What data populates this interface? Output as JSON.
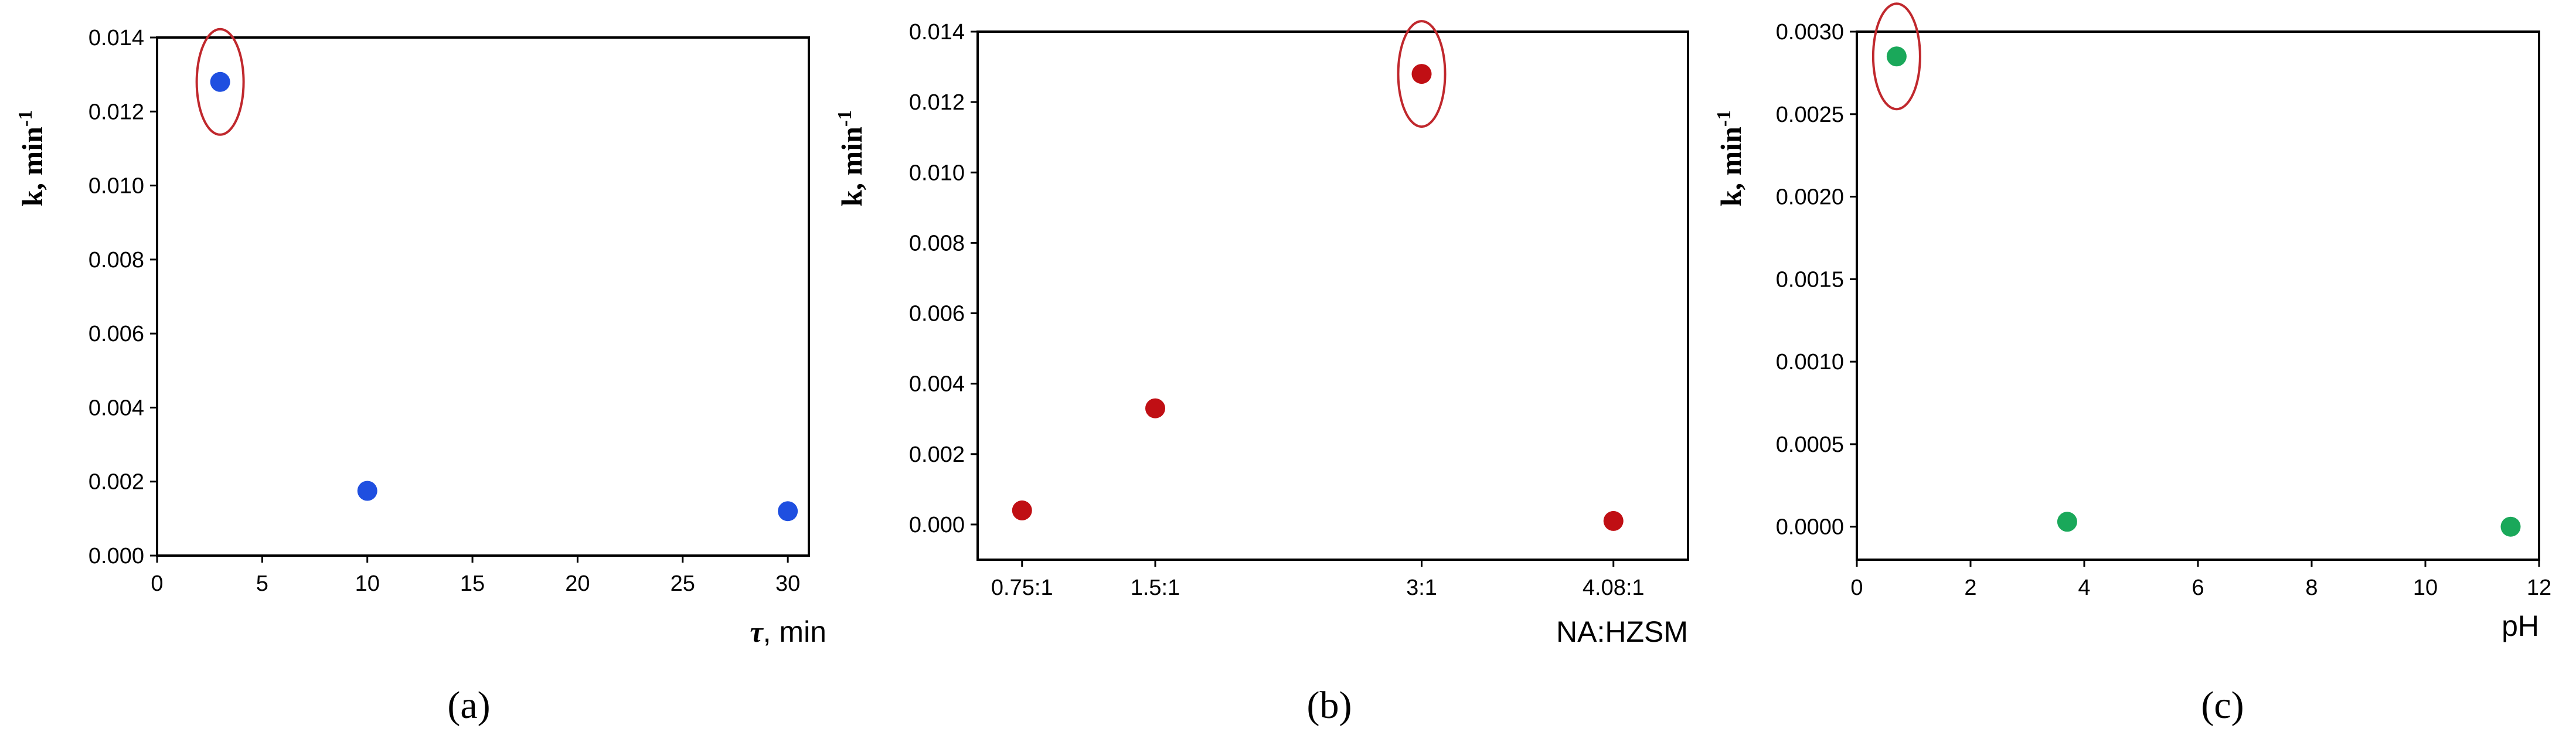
{
  "chart_data": [
    {
      "type": "scatter",
      "panel_label": "(a)",
      "ylabel": {
        "main": "k, min",
        "sup": "-1"
      },
      "xlabel": {
        "symbol": "τ",
        "text": ", min"
      },
      "xlim": [
        0,
        31
      ],
      "ylim": [
        0,
        0.014
      ],
      "xticks": [
        0,
        5,
        10,
        15,
        20,
        25,
        30
      ],
      "xtick_labels": [
        "0",
        "5",
        "10",
        "15",
        "20",
        "25",
        "30"
      ],
      "yticks": [
        0,
        0.002,
        0.004,
        0.006,
        0.008,
        0.01,
        0.012,
        0.014
      ],
      "ytick_labels": [
        "0.000",
        "0.002",
        "0.004",
        "0.006",
        "0.008",
        "0.010",
        "0.012",
        "0.014"
      ],
      "marker_color": "#1f4fe0",
      "highlight_color": "#c0282d",
      "grid": false,
      "points": [
        {
          "x": 3,
          "y": 0.0128,
          "highlight": true
        },
        {
          "x": 10,
          "y": 0.00175,
          "highlight": false
        },
        {
          "x": 30,
          "y": 0.0012,
          "highlight": false
        }
      ]
    },
    {
      "type": "scatter",
      "panel_label": "(b)",
      "ylabel": {
        "main": "k, min",
        "sup": "-1"
      },
      "xlabel": {
        "text": "NA:HZSM"
      },
      "xlim": [
        0.5,
        4.5
      ],
      "ylim": [
        -0.001,
        0.014
      ],
      "xticks": [
        0.75,
        1.5,
        3,
        4.08
      ],
      "xtick_labels": [
        "0.75:1",
        "1.5:1",
        "3:1",
        "4.08:1"
      ],
      "yticks": [
        0,
        0.002,
        0.004,
        0.006,
        0.008,
        0.01,
        0.012,
        0.014
      ],
      "ytick_labels": [
        "0.000",
        "0.002",
        "0.004",
        "0.006",
        "0.008",
        "0.010",
        "0.012",
        "0.014"
      ],
      "marker_color": "#c00f14",
      "highlight_color": "#c0282d",
      "grid": false,
      "points": [
        {
          "x": 0.75,
          "y": 0.0004,
          "highlight": false
        },
        {
          "x": 1.5,
          "y": 0.0033,
          "highlight": false
        },
        {
          "x": 3,
          "y": 0.0128,
          "highlight": true
        },
        {
          "x": 4.08,
          "y": 0.0001,
          "highlight": false
        }
      ]
    },
    {
      "type": "scatter",
      "panel_label": "(c)",
      "ylabel": {
        "main": "k, min",
        "sup": "-1"
      },
      "xlabel": {
        "text": "pH"
      },
      "xlim": [
        0,
        12
      ],
      "ylim": [
        -0.0002,
        0.003
      ],
      "xticks": [
        0,
        2,
        4,
        6,
        8,
        10,
        12
      ],
      "xtick_labels": [
        "0",
        "2",
        "4",
        "6",
        "8",
        "10",
        "12"
      ],
      "yticks": [
        0,
        0.0005,
        0.001,
        0.0015,
        0.002,
        0.0025,
        0.003
      ],
      "ytick_labels": [
        "0.0000",
        "0.0005",
        "0.0010",
        "0.0015",
        "0.0020",
        "0.0025",
        "0.0030"
      ],
      "marker_color": "#1aa85a",
      "highlight_color": "#c0282d",
      "grid": false,
      "points": [
        {
          "x": 0.7,
          "y": 0.00285,
          "highlight": true
        },
        {
          "x": 3.7,
          "y": 3e-05,
          "highlight": false
        },
        {
          "x": 11.5,
          "y": 0,
          "highlight": false
        }
      ]
    }
  ]
}
